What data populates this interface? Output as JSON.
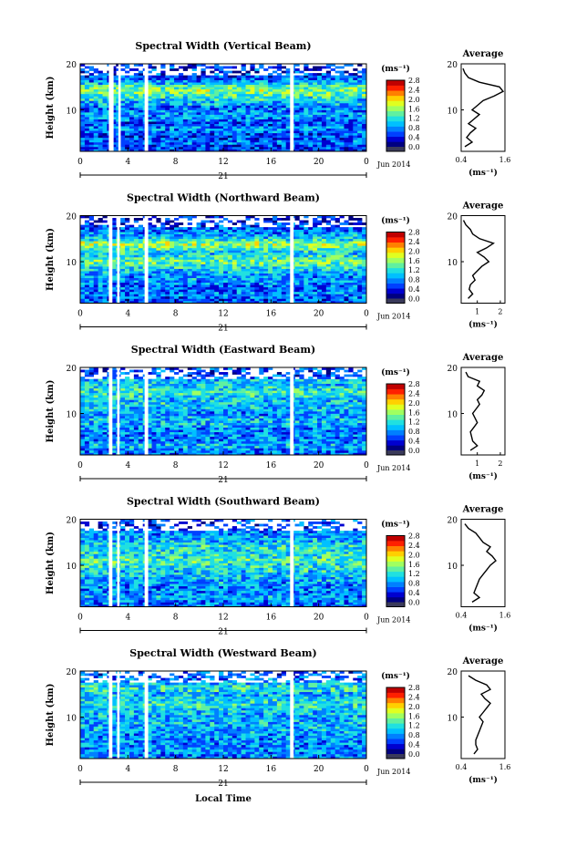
{
  "figure": {
    "date_label": "Jun 2014",
    "day_label": "21",
    "xlabel": "Local Time",
    "ylabel": "Height (km)",
    "cbar_unit": "(ms⁻¹)",
    "avg_title": "Average",
    "avg_xlabel": "(ms⁻¹)",
    "colors": {
      "colormap": [
        "#000080",
        "#0000d0",
        "#0040ff",
        "#0080ff",
        "#00c0ff",
        "#20e0e0",
        "#60f0a0",
        "#a0ff60",
        "#e0ff20",
        "#ffd000",
        "#ff8000",
        "#ff2000",
        "#c00000"
      ],
      "below_range": "#3a3a5a",
      "gap": "#ffffff",
      "avg_line": "#000000"
    }
  },
  "chart_data": [
    {
      "type": "heatmap",
      "title": "Spectral Width (Vertical Beam)",
      "xticks": [
        "0",
        "4",
        "8",
        "12",
        "16",
        "20",
        "0"
      ],
      "xlim": [
        0,
        24
      ],
      "yticks": [
        "20",
        "10"
      ],
      "ylim": [
        1,
        20
      ],
      "colorbar": {
        "ticks": [
          "2.8",
          "2.4",
          "2.0",
          "1.6",
          "1.2",
          "0.8",
          "0.4",
          "0.0"
        ],
        "range": [
          0,
          2.8
        ]
      },
      "gaps_hours": [
        [
          2.4,
          2.8
        ],
        [
          3.2,
          3.4
        ],
        [
          5.4,
          5.7
        ],
        [
          17.6,
          17.9
        ]
      ],
      "profile": {
        "xticks": [
          "0.4",
          "1.6"
        ],
        "xlim": [
          0.4,
          1.6
        ],
        "heights": [
          2,
          3,
          4,
          5,
          6,
          7,
          8,
          9,
          10,
          11,
          12,
          13,
          14,
          15,
          16,
          17,
          18,
          19
        ],
        "values": [
          0.5,
          0.7,
          0.55,
          0.65,
          0.8,
          0.6,
          0.75,
          0.9,
          0.7,
          0.85,
          1.0,
          1.3,
          1.55,
          1.45,
          0.9,
          0.6,
          0.5,
          0.45
        ]
      }
    },
    {
      "type": "heatmap",
      "title": "Spectral Width (Northward Beam)",
      "xticks": [
        "0",
        "4",
        "8",
        "12",
        "16",
        "20",
        "0"
      ],
      "xlim": [
        0,
        24
      ],
      "yticks": [
        "20",
        "10"
      ],
      "ylim": [
        1,
        20
      ],
      "colorbar": {
        "ticks": [
          "2.8",
          "2.4",
          "2.0",
          "1.6",
          "1.2",
          "0.8",
          "0.4",
          "0.0"
        ],
        "range": [
          0,
          2.8
        ]
      },
      "gaps_hours": [
        [
          2.4,
          2.7
        ],
        [
          3.1,
          3.3
        ],
        [
          5.4,
          5.7
        ],
        [
          17.6,
          17.9
        ]
      ],
      "profile": {
        "xticks": [
          "1",
          "2"
        ],
        "xlim": [
          0.3,
          2.2
        ],
        "heights": [
          2,
          3,
          4,
          5,
          6,
          7,
          8,
          9,
          10,
          11,
          12,
          13,
          14,
          15,
          16,
          17,
          18,
          19
        ],
        "values": [
          0.6,
          0.8,
          0.65,
          0.7,
          0.9,
          0.8,
          1.0,
          1.2,
          1.5,
          1.3,
          1.0,
          1.4,
          1.7,
          1.1,
          0.8,
          0.7,
          0.5,
          0.4
        ]
      }
    },
    {
      "type": "heatmap",
      "title": "Spectral Width (Eastward Beam)",
      "xticks": [
        "0",
        "4",
        "8",
        "12",
        "16",
        "20",
        "0"
      ],
      "xlim": [
        0,
        24
      ],
      "yticks": [
        "20",
        "10"
      ],
      "ylim": [
        1,
        20
      ],
      "colorbar": {
        "ticks": [
          "2.8",
          "2.4",
          "2.0",
          "1.6",
          "1.2",
          "0.8",
          "0.4",
          "0.0"
        ],
        "range": [
          0,
          2.8
        ]
      },
      "gaps_hours": [
        [
          2.4,
          2.7
        ],
        [
          3.1,
          3.3
        ],
        [
          5.4,
          5.7
        ],
        [
          17.6,
          17.9
        ]
      ],
      "profile": {
        "xticks": [
          "1",
          "2"
        ],
        "xlim": [
          0.3,
          2.2
        ],
        "heights": [
          2,
          3,
          4,
          5,
          6,
          7,
          8,
          9,
          10,
          11,
          12,
          13,
          14,
          15,
          16,
          17,
          18,
          19
        ],
        "values": [
          0.7,
          1.0,
          0.8,
          0.75,
          0.7,
          0.85,
          1.0,
          0.9,
          0.8,
          0.95,
          1.1,
          1.0,
          1.2,
          1.3,
          1.0,
          1.1,
          0.6,
          0.5
        ]
      }
    },
    {
      "type": "heatmap",
      "title": "Spectral Width (Southward Beam)",
      "xticks": [
        "0",
        "4",
        "8",
        "12",
        "16",
        "20",
        "0"
      ],
      "xlim": [
        0,
        24
      ],
      "yticks": [
        "20",
        "10"
      ],
      "ylim": [
        1,
        20
      ],
      "colorbar": {
        "ticks": [
          "2.8",
          "2.4",
          "2.0",
          "1.6",
          "1.2",
          "0.8",
          "0.4",
          "0.0"
        ],
        "range": [
          0,
          2.8
        ]
      },
      "gaps_hours": [
        [
          2.4,
          2.7
        ],
        [
          3.1,
          3.3
        ],
        [
          5.4,
          5.7
        ],
        [
          17.6,
          17.9
        ]
      ],
      "profile": {
        "xticks": [
          "0.4",
          "1.6"
        ],
        "xlim": [
          0.4,
          1.6
        ],
        "heights": [
          2,
          3,
          4,
          5,
          6,
          7,
          8,
          9,
          10,
          11,
          12,
          13,
          14,
          15,
          16,
          17,
          18,
          19
        ],
        "values": [
          0.7,
          0.9,
          0.75,
          0.8,
          0.85,
          0.9,
          1.0,
          1.1,
          1.2,
          1.35,
          1.25,
          1.1,
          1.2,
          1.0,
          0.9,
          0.8,
          0.6,
          0.5
        ]
      }
    },
    {
      "type": "heatmap",
      "title": "Spectral Width (Westward Beam)",
      "xticks": [
        "0",
        "4",
        "8",
        "12",
        "16",
        "20",
        "0"
      ],
      "xlim": [
        0,
        24
      ],
      "yticks": [
        "20",
        "10"
      ],
      "ylim": [
        1,
        20
      ],
      "colorbar": {
        "ticks": [
          "2.8",
          "2.4",
          "2.0",
          "1.6",
          "1.2",
          "0.8",
          "0.4",
          "0.0"
        ],
        "range": [
          0,
          2.8
        ]
      },
      "gaps_hours": [
        [
          2.4,
          2.7
        ],
        [
          3.1,
          3.3
        ],
        [
          5.4,
          5.7
        ],
        [
          17.6,
          17.9
        ]
      ],
      "profile": {
        "xticks": [
          "0.4",
          "1.6"
        ],
        "xlim": [
          0.4,
          1.6
        ],
        "heights": [
          2,
          3,
          4,
          5,
          6,
          7,
          8,
          9,
          10,
          11,
          12,
          13,
          14,
          15,
          16,
          17,
          18,
          19
        ],
        "values": [
          0.75,
          0.85,
          0.8,
          0.8,
          0.85,
          0.9,
          0.95,
          1.0,
          0.9,
          1.0,
          1.1,
          1.2,
          1.05,
          0.95,
          1.2,
          1.1,
          0.8,
          0.6
        ]
      }
    }
  ]
}
